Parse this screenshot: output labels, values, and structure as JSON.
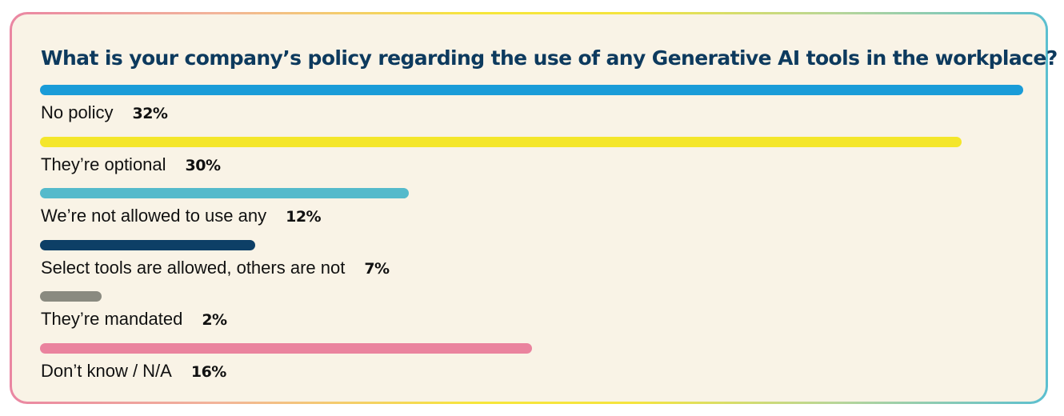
{
  "chart_data": {
    "type": "bar",
    "orientation": "horizontal",
    "title": "What is your company’s policy regarding the use of any Generative AI tools in the workplace?",
    "categories": [
      "No policy",
      "They’re optional",
      "We’re not allowed to use any",
      "Select tools are allowed, others are not",
      "They’re mandated",
      "Don’t know / N/A"
    ],
    "values": [
      32,
      30,
      12,
      7,
      2,
      16
    ],
    "value_labels": [
      "32%",
      "30%",
      "12%",
      "7%",
      "2%",
      "16%"
    ],
    "colors": [
      "#1a9cd8",
      "#f4e62b",
      "#55bacb",
      "#0d3f66",
      "#8a8a80",
      "#ea839e"
    ],
    "xlim": [
      0,
      32
    ],
    "grid": false,
    "legend": "none"
  },
  "colors": {
    "title": "#0d3a5e",
    "card_background": "#f9f3e6"
  }
}
